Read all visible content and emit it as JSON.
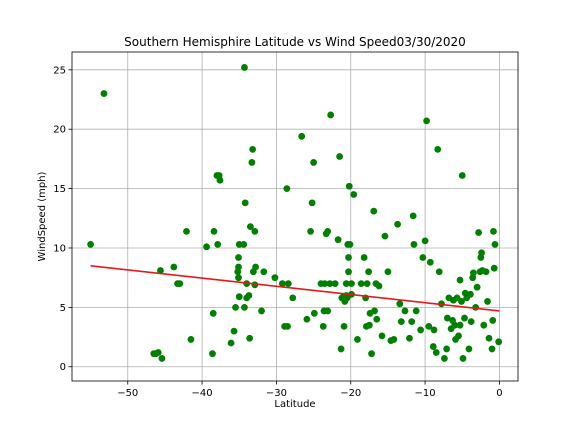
{
  "chart_data": {
    "type": "scatter",
    "title": "Southern Hemisphire Latitude vs Wind Speed03/30/2020",
    "xlabel": "Latitude",
    "ylabel": "WindSpeed (mph)",
    "xlim": [
      -57.5,
      2.5
    ],
    "ylim": [
      -1.2,
      26.5
    ],
    "x_ticks": [
      -50,
      -40,
      -30,
      -20,
      -10,
      0
    ],
    "x_tick_labels": [
      "−50",
      "−40",
      "−30",
      "−20",
      "−10",
      "0"
    ],
    "y_ticks": [
      0,
      5,
      10,
      15,
      20,
      25
    ],
    "y_tick_labels": [
      "0",
      "5",
      "10",
      "15",
      "20",
      "25"
    ],
    "grid": true,
    "marker_color": "#008000",
    "regression_color": "#e41a1a",
    "regression": {
      "x": [
        -55,
        0
      ],
      "y": [
        8.5,
        4.7
      ]
    },
    "points": [
      [
        -55,
        10.3
      ],
      [
        -53.2,
        23
      ],
      [
        -46.5,
        1.1
      ],
      [
        -46.2,
        1.1
      ],
      [
        -45.9,
        1.2
      ],
      [
        -45.6,
        8.1
      ],
      [
        -45.4,
        0.7
      ],
      [
        -43.8,
        8.4
      ],
      [
        -43.3,
        7
      ],
      [
        -43,
        7
      ],
      [
        -42.1,
        11.4
      ],
      [
        -41.5,
        2.3
      ],
      [
        -39.4,
        10.1
      ],
      [
        -38.6,
        1.1
      ],
      [
        -38.5,
        4.5
      ],
      [
        -38.4,
        11.4
      ],
      [
        -38,
        16.1
      ],
      [
        -37.7,
        16.1
      ],
      [
        -37.6,
        15.7
      ],
      [
        -37.9,
        10.3
      ],
      [
        -36.1,
        2
      ],
      [
        -35.7,
        3
      ],
      [
        -35.5,
        5
      ],
      [
        -35,
        5.9
      ],
      [
        -35.1,
        9.2
      ],
      [
        -35,
        10.3
      ],
      [
        -35.1,
        7.5
      ],
      [
        -35.2,
        8
      ],
      [
        -35.1,
        8.4
      ],
      [
        -34.4,
        10.3
      ],
      [
        -34.3,
        25.2
      ],
      [
        -34.2,
        13.8
      ],
      [
        -34,
        7
      ],
      [
        -34,
        5.8
      ],
      [
        -34.3,
        5
      ],
      [
        -33.7,
        6
      ],
      [
        -33.6,
        2.4
      ],
      [
        -33.5,
        11.8
      ],
      [
        -33.3,
        17.2
      ],
      [
        -33.2,
        18.3
      ],
      [
        -33.1,
        8
      ],
      [
        -32.9,
        11.4
      ],
      [
        -32.8,
        8.4
      ],
      [
        -32.9,
        6.9
      ],
      [
        -32,
        4.7
      ],
      [
        -31.7,
        8
      ],
      [
        -30.2,
        7.5
      ],
      [
        -29.2,
        7
      ],
      [
        -28.9,
        3.4
      ],
      [
        -28.6,
        15
      ],
      [
        -28.5,
        3.4
      ],
      [
        -28.4,
        7
      ],
      [
        -27.8,
        5.8
      ],
      [
        -26.6,
        19.4
      ],
      [
        -25.9,
        4
      ],
      [
        -25.4,
        11.4
      ],
      [
        -25.2,
        13.8
      ],
      [
        -25,
        17.2
      ],
      [
        -24.9,
        4.5
      ],
      [
        -24,
        7
      ],
      [
        -23.7,
        3.4
      ],
      [
        -23.6,
        4.7
      ],
      [
        -23.5,
        7
      ],
      [
        -23.3,
        11.2
      ],
      [
        -23.1,
        11.4
      ],
      [
        -23.1,
        4.7
      ],
      [
        -22.8,
        7
      ],
      [
        -22.7,
        21.2
      ],
      [
        -22.1,
        7
      ],
      [
        -21.7,
        10.7
      ],
      [
        -21.5,
        17.7
      ],
      [
        -21.3,
        1.5
      ],
      [
        -21.2,
        5.8
      ],
      [
        -21,
        5.9
      ],
      [
        -20.9,
        3.4
      ],
      [
        -20.8,
        5.5
      ],
      [
        -20.8,
        5.7
      ],
      [
        -20.6,
        7
      ],
      [
        -20.6,
        6
      ],
      [
        -20.4,
        10.3
      ],
      [
        -20.5,
        5.8
      ],
      [
        -20.3,
        9.2
      ],
      [
        -20.3,
        8
      ],
      [
        -20.2,
        15.2
      ],
      [
        -20.1,
        10.3
      ],
      [
        -19.9,
        6.1
      ],
      [
        -19.9,
        7
      ],
      [
        -19.6,
        14.5
      ],
      [
        -19.1,
        2.3
      ],
      [
        -18.6,
        7
      ],
      [
        -18.2,
        9.2
      ],
      [
        -18,
        5.8
      ],
      [
        -17.9,
        3.4
      ],
      [
        -17.8,
        7
      ],
      [
        -17.6,
        8
      ],
      [
        -17.5,
        3.5
      ],
      [
        -17.4,
        4.5
      ],
      [
        -17.2,
        1.1
      ],
      [
        -16.9,
        13.1
      ],
      [
        -16.8,
        4.7
      ],
      [
        -16.6,
        7
      ],
      [
        -16.5,
        4
      ],
      [
        -16.2,
        6.8
      ],
      [
        -15.8,
        2.6
      ],
      [
        -15.4,
        11
      ],
      [
        -15,
        8
      ],
      [
        -14.6,
        2.2
      ],
      [
        -14.2,
        2.3
      ],
      [
        -13.7,
        12
      ],
      [
        -13.4,
        5.3
      ],
      [
        -13.2,
        3.8
      ],
      [
        -12.7,
        4.7
      ],
      [
        -12.1,
        2.4
      ],
      [
        -11.8,
        3.8
      ],
      [
        -11.6,
        12.7
      ],
      [
        -11.5,
        10.3
      ],
      [
        -11.2,
        4.7
      ],
      [
        -10.6,
        3.1
      ],
      [
        -10.3,
        9.2
      ],
      [
        -10,
        10.6
      ],
      [
        -9.8,
        20.7
      ],
      [
        -9.5,
        3.4
      ],
      [
        -9.3,
        8.8
      ],
      [
        -8.9,
        1.7
      ],
      [
        -8.8,
        3.1
      ],
      [
        -8.5,
        1.2
      ],
      [
        -8.3,
        18.3
      ],
      [
        -8.1,
        8
      ],
      [
        -7.8,
        5.3
      ],
      [
        -7.4,
        0.7
      ],
      [
        -7.1,
        1.5
      ],
      [
        -7,
        4.1
      ],
      [
        -6.8,
        5.8
      ],
      [
        -6.5,
        3.2
      ],
      [
        -6.3,
        3.9
      ],
      [
        -6.2,
        5.6
      ],
      [
        -6,
        3.5
      ],
      [
        -5.9,
        2.3
      ],
      [
        -5.7,
        5.8
      ],
      [
        -5.5,
        2.6
      ],
      [
        -5.3,
        7.3
      ],
      [
        -5.3,
        3.5
      ],
      [
        -5.1,
        5.5
      ],
      [
        -5,
        16.1
      ],
      [
        -4.9,
        0.7
      ],
      [
        -4.7,
        4.1
      ],
      [
        -4.6,
        6.2
      ],
      [
        -4.4,
        5.8
      ],
      [
        -4.1,
        1.5
      ],
      [
        -3.9,
        6.1
      ],
      [
        -3.8,
        3.8
      ],
      [
        -3.6,
        7.5
      ],
      [
        -3.5,
        7.9
      ],
      [
        -3.2,
        5
      ],
      [
        -3,
        6.7
      ],
      [
        -2.8,
        11.3
      ],
      [
        -2.6,
        8
      ],
      [
        -2.5,
        9.2
      ],
      [
        -2.4,
        9.6
      ],
      [
        -2.3,
        8.1
      ],
      [
        -2.1,
        3.5
      ],
      [
        -1.8,
        8
      ],
      [
        -1.6,
        5.5
      ],
      [
        -1.4,
        2.4
      ],
      [
        -1,
        1.5
      ],
      [
        -0.9,
        3.9
      ],
      [
        -0.8,
        11.4
      ],
      [
        -0.7,
        8.3
      ],
      [
        -0.6,
        10.3
      ],
      [
        -0.1,
        2.1
      ]
    ]
  }
}
